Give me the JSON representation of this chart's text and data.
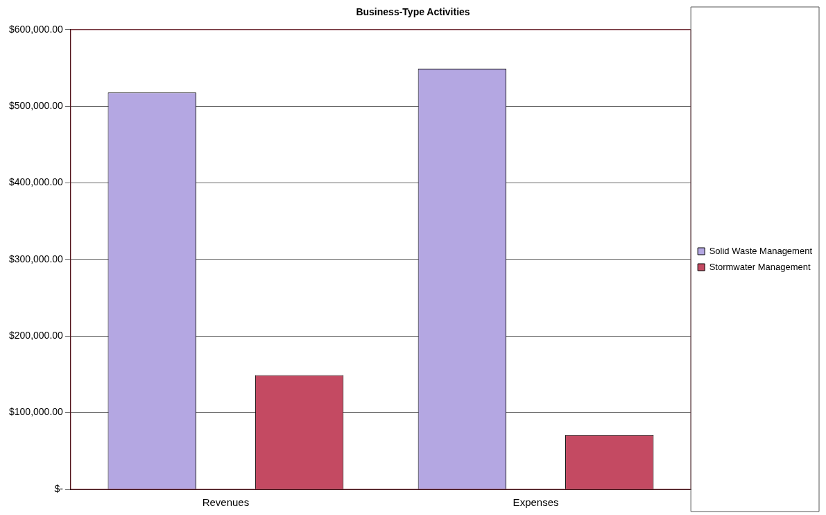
{
  "chart_data": {
    "type": "bar",
    "title": "Business-Type Activities",
    "categories": [
      "Revenues",
      "Expenses"
    ],
    "series": [
      {
        "name": "Solid Waste Management",
        "color": "#b4a7e2",
        "values": [
          518000,
          549000
        ]
      },
      {
        "name": "Stormwater Management",
        "color": "#c44a62",
        "values": [
          149000,
          71000
        ]
      }
    ],
    "ylim": [
      0,
      600000
    ],
    "yticks": [
      {
        "value": 0,
        "label": "$-"
      },
      {
        "value": 100000,
        "label": "$100,000.00"
      },
      {
        "value": 200000,
        "label": "$200,000.00"
      },
      {
        "value": 300000,
        "label": "$300,000.00"
      },
      {
        "value": 400000,
        "label": "$400,000.00"
      },
      {
        "value": 500000,
        "label": "$500,000.00"
      },
      {
        "value": 600000,
        "label": "$600,000.00"
      }
    ],
    "grid": "y",
    "legend": "right"
  }
}
